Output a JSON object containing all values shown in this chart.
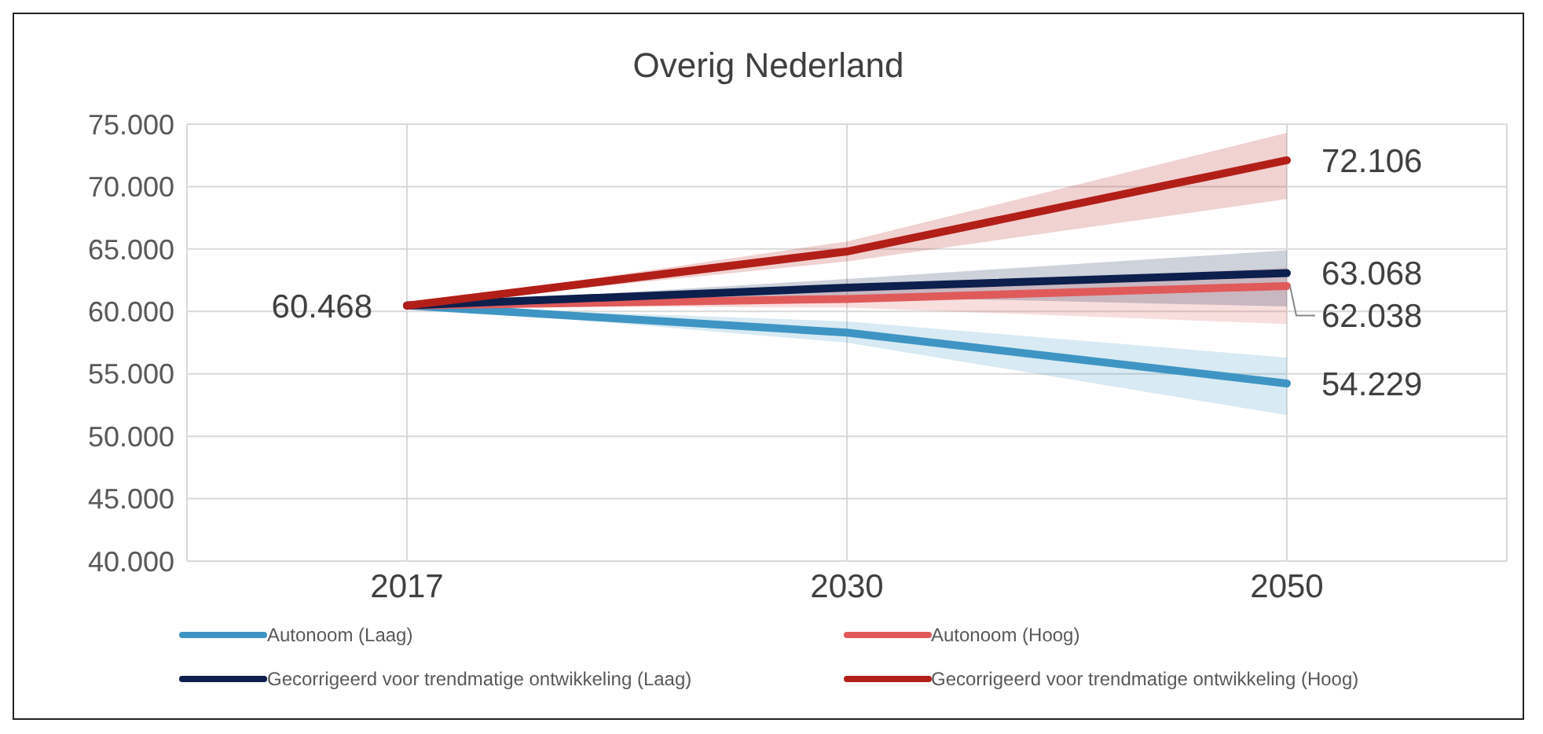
{
  "chart_data": {
    "type": "line",
    "title": "Overig Nederland",
    "categories": [
      "2017",
      "2030",
      "2050"
    ],
    "ylim": [
      40,
      75
    ],
    "yticks": [
      {
        "value": 40,
        "label": "40.000"
      },
      {
        "value": 45,
        "label": "45.000"
      },
      {
        "value": 50,
        "label": "50.000"
      },
      {
        "value": 55,
        "label": "55.000"
      },
      {
        "value": 60,
        "label": "60.000"
      },
      {
        "value": 65,
        "label": "65.000"
      },
      {
        "value": 70,
        "label": "70.000"
      },
      {
        "value": 75,
        "label": "75.000"
      }
    ],
    "grid": true,
    "legend": "bottom",
    "marker": "none",
    "line_style": "solid",
    "series": [
      {
        "name": "Autonoom (Laag)",
        "color": "#3e95c3",
        "values": [
          60.468,
          58.3,
          54.229
        ],
        "lower": [
          60.468,
          57.5,
          51.7
        ],
        "upper": [
          60.468,
          59.2,
          56.3
        ],
        "value_labels": [
          "60.468",
          null,
          "54.229"
        ]
      },
      {
        "name": "Autonoom (Hoog)",
        "color": "#e05a5a",
        "values": [
          60.468,
          61.0,
          62.038
        ],
        "lower": [
          60.468,
          60.3,
          59.0
        ],
        "upper": [
          60.468,
          61.7,
          63.5
        ],
        "value_labels": [
          null,
          null,
          "62.038"
        ]
      },
      {
        "name": "Gecorrigeerd voor trendmatige ontwikkeling (Laag)",
        "color": "#0c1f4d",
        "values": [
          60.468,
          61.9,
          63.068
        ],
        "lower": [
          60.468,
          61.2,
          60.4
        ],
        "upper": [
          60.468,
          62.6,
          64.9
        ],
        "value_labels": [
          null,
          null,
          "63.068"
        ]
      },
      {
        "name": "Gecorrigeerd voor trendmatige ontwikkeling (Hoog)",
        "color": "#b21f18",
        "values": [
          60.468,
          64.8,
          72.106
        ],
        "lower": [
          60.468,
          64.0,
          69.0
        ],
        "upper": [
          60.468,
          65.6,
          74.3
        ],
        "value_labels": [
          null,
          null,
          "72.106"
        ]
      }
    ]
  }
}
